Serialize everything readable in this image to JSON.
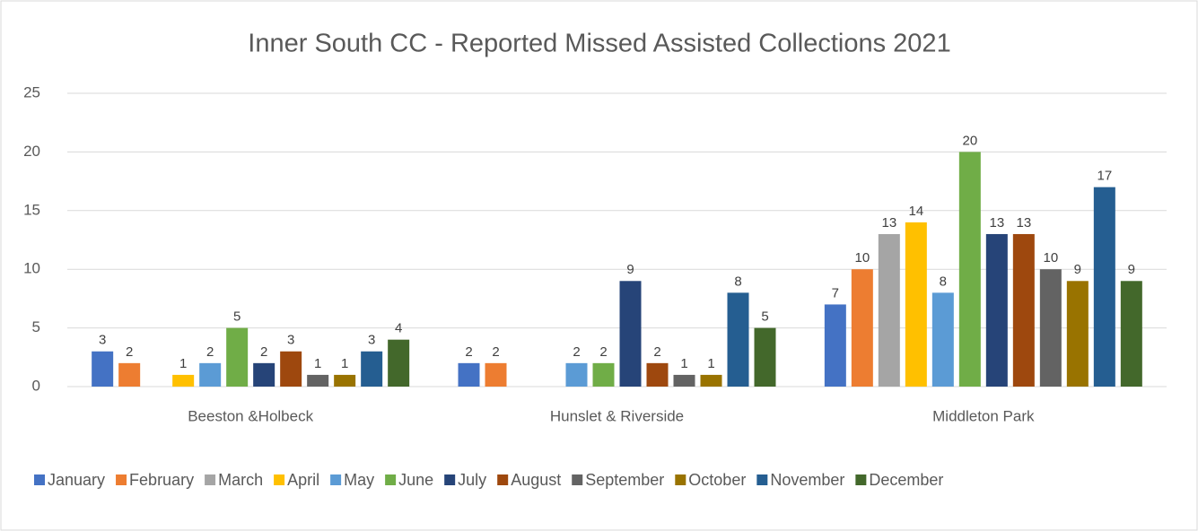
{
  "chart_data": {
    "type": "bar",
    "title": "Inner South CC - Reported Missed Assisted Collections 2021",
    "categories": [
      "Beeston &Holbeck",
      "Hunslet & Riverside",
      "Middleton Park"
    ],
    "series": [
      {
        "name": "January",
        "color": "#4472c4",
        "values": [
          3,
          2,
          7
        ]
      },
      {
        "name": "February",
        "color": "#ed7d31",
        "values": [
          2,
          2,
          10
        ]
      },
      {
        "name": "March",
        "color": "#a5a5a5",
        "values": [
          null,
          null,
          13
        ]
      },
      {
        "name": "April",
        "color": "#ffc000",
        "values": [
          1,
          null,
          14
        ]
      },
      {
        "name": "May",
        "color": "#5b9bd5",
        "values": [
          2,
          2,
          8
        ]
      },
      {
        "name": "June",
        "color": "#70ad47",
        "values": [
          5,
          2,
          20
        ]
      },
      {
        "name": "July",
        "color": "#264478",
        "values": [
          2,
          9,
          13
        ]
      },
      {
        "name": "August",
        "color": "#9e480e",
        "values": [
          3,
          2,
          13
        ]
      },
      {
        "name": "September",
        "color": "#636363",
        "values": [
          1,
          1,
          10
        ]
      },
      {
        "name": "October",
        "color": "#997300",
        "values": [
          1,
          1,
          9
        ]
      },
      {
        "name": "November",
        "color": "#255e91",
        "values": [
          3,
          8,
          17
        ]
      },
      {
        "name": "December",
        "color": "#43682b",
        "values": [
          4,
          5,
          9
        ]
      }
    ],
    "ylim": [
      0,
      25
    ],
    "yticks": [
      0,
      5,
      10,
      15,
      20,
      25
    ],
    "grid": true,
    "legend": "bottom"
  }
}
